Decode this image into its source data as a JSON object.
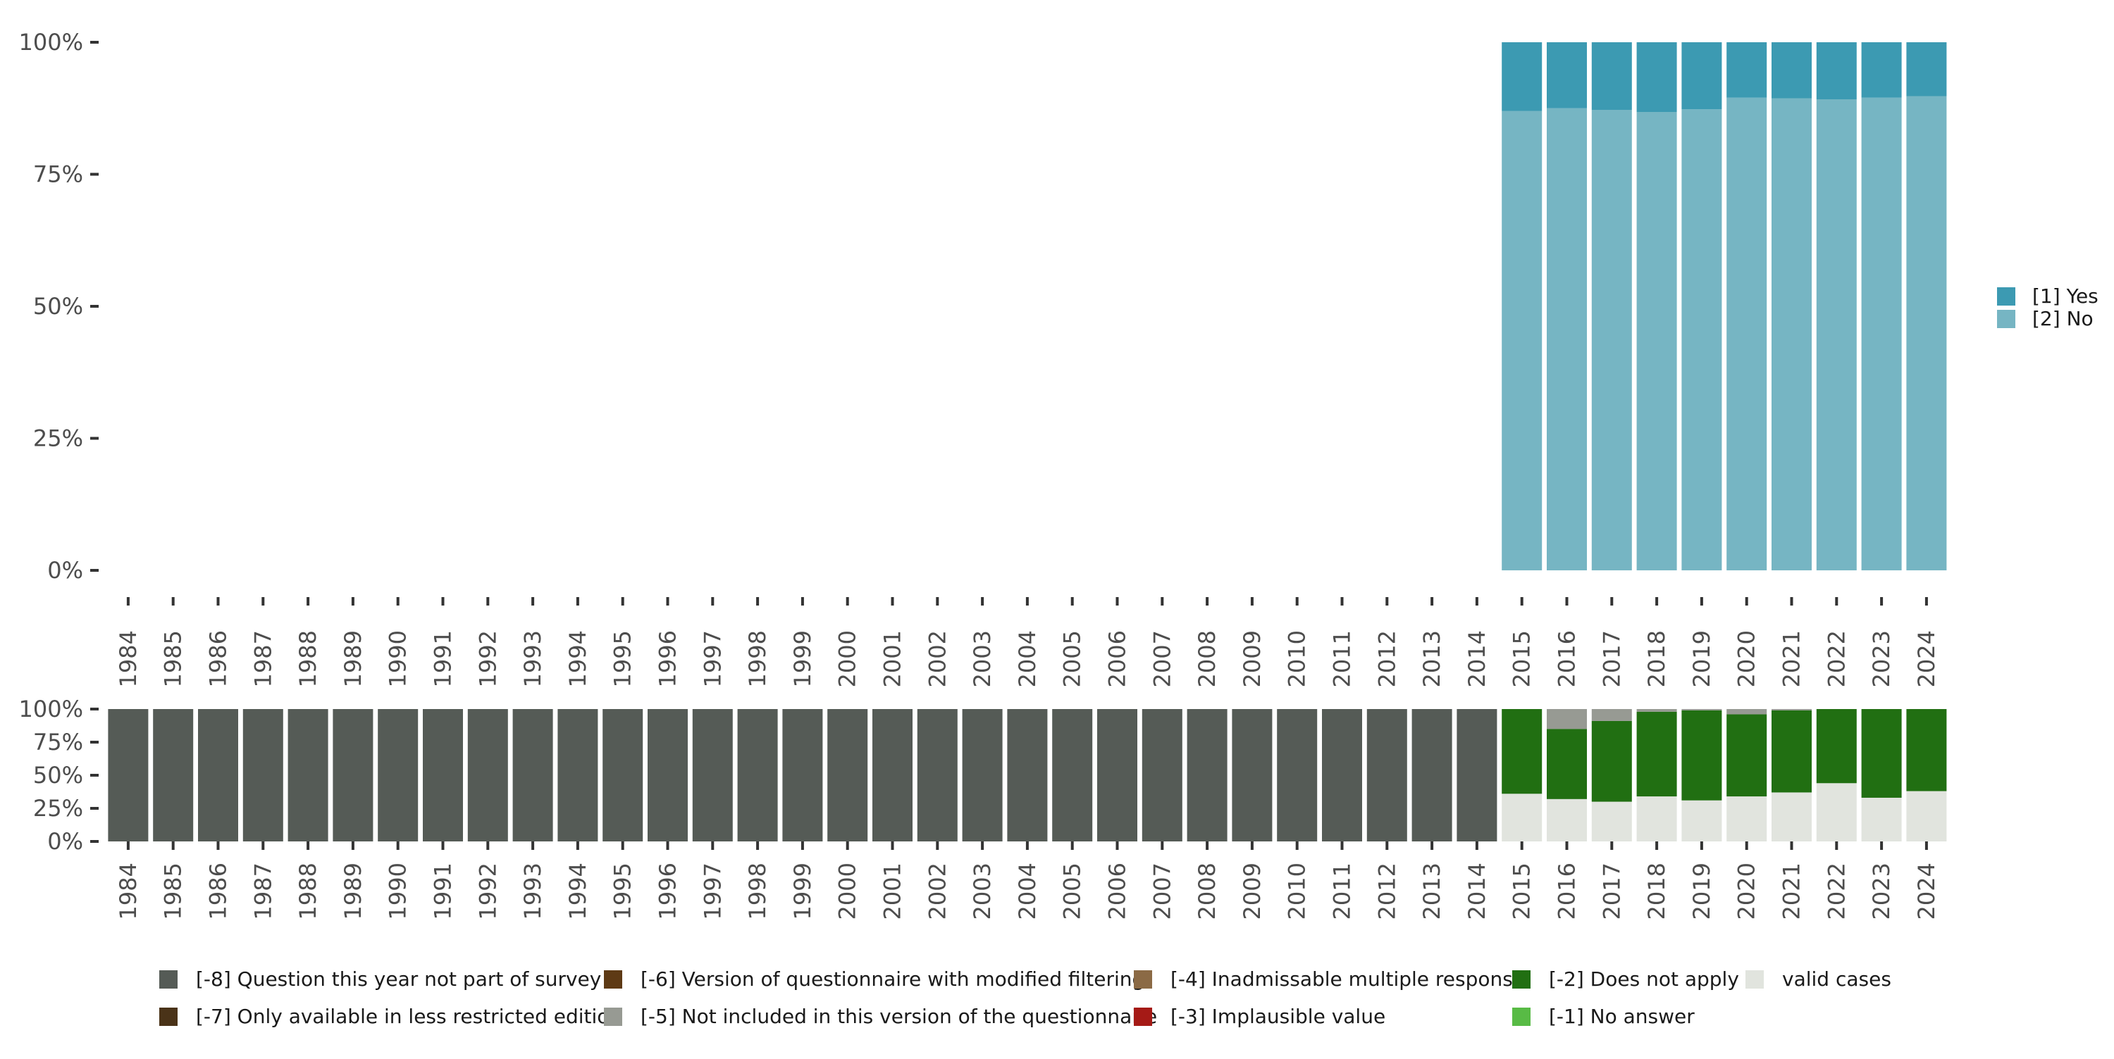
{
  "chart_data": [
    {
      "type": "bar",
      "stacked": true,
      "percent": true,
      "categories": [
        "1984",
        "1985",
        "1986",
        "1987",
        "1988",
        "1989",
        "1990",
        "1991",
        "1992",
        "1993",
        "1994",
        "1995",
        "1996",
        "1997",
        "1998",
        "1999",
        "2000",
        "2001",
        "2002",
        "2003",
        "2004",
        "2005",
        "2006",
        "2007",
        "2008",
        "2009",
        "2010",
        "2011",
        "2012",
        "2013",
        "2014",
        "2015",
        "2016",
        "2017",
        "2018",
        "2019",
        "2020",
        "2021",
        "2022",
        "2023",
        "2024"
      ],
      "ylim": [
        0,
        100
      ],
      "yticks": [
        "0%",
        "25%",
        "50%",
        "75%",
        "100%"
      ],
      "legend_position": "right",
      "series": [
        {
          "name": "[2] No",
          "color": "#76B5C3",
          "values": [
            null,
            null,
            null,
            null,
            null,
            null,
            null,
            null,
            null,
            null,
            null,
            null,
            null,
            null,
            null,
            null,
            null,
            null,
            null,
            null,
            null,
            null,
            null,
            null,
            null,
            null,
            null,
            null,
            null,
            null,
            null,
            87.0,
            87.5,
            87.2,
            86.8,
            87.3,
            89.5,
            89.4,
            89.2,
            89.5,
            89.8
          ]
        },
        {
          "name": "[1] Yes",
          "color": "#3C9AB2",
          "values": [
            null,
            null,
            null,
            null,
            null,
            null,
            null,
            null,
            null,
            null,
            null,
            null,
            null,
            null,
            null,
            null,
            null,
            null,
            null,
            null,
            null,
            null,
            null,
            null,
            null,
            null,
            null,
            null,
            null,
            null,
            null,
            13.0,
            12.5,
            12.8,
            13.2,
            12.7,
            10.5,
            10.6,
            10.8,
            10.5,
            10.2
          ]
        }
      ],
      "legend": [
        {
          "label": "[1] Yes",
          "color": "#3C9AB2"
        },
        {
          "label": "[2] No",
          "color": "#76B5C3"
        }
      ]
    },
    {
      "type": "bar",
      "stacked": true,
      "percent": true,
      "categories": [
        "1984",
        "1985",
        "1986",
        "1987",
        "1988",
        "1989",
        "1990",
        "1991",
        "1992",
        "1993",
        "1994",
        "1995",
        "1996",
        "1997",
        "1998",
        "1999",
        "2000",
        "2001",
        "2002",
        "2003",
        "2004",
        "2005",
        "2006",
        "2007",
        "2008",
        "2009",
        "2010",
        "2011",
        "2012",
        "2013",
        "2014",
        "2015",
        "2016",
        "2017",
        "2018",
        "2019",
        "2020",
        "2021",
        "2022",
        "2023",
        "2024"
      ],
      "ylim": [
        0,
        100
      ],
      "yticks": [
        "0%",
        "25%",
        "50%",
        "75%",
        "100%"
      ],
      "legend_position": "bottom",
      "series": [
        {
          "name": "valid cases",
          "color": "#E1E4DE",
          "values": [
            0,
            0,
            0,
            0,
            0,
            0,
            0,
            0,
            0,
            0,
            0,
            0,
            0,
            0,
            0,
            0,
            0,
            0,
            0,
            0,
            0,
            0,
            0,
            0,
            0,
            0,
            0,
            0,
            0,
            0,
            0,
            36,
            32,
            30,
            34,
            31,
            34,
            37,
            44,
            33,
            38
          ]
        },
        {
          "name": "[-2] Does not apply",
          "color": "#216F12",
          "values": [
            0,
            0,
            0,
            0,
            0,
            0,
            0,
            0,
            0,
            0,
            0,
            0,
            0,
            0,
            0,
            0,
            0,
            0,
            0,
            0,
            0,
            0,
            0,
            0,
            0,
            0,
            0,
            0,
            0,
            0,
            0,
            64,
            53,
            61,
            64,
            68,
            62,
            62,
            56,
            67,
            62
          ]
        },
        {
          "name": "[-5] Not included in this version of the questionnaire",
          "color": "#979A93",
          "values": [
            0,
            0,
            0,
            0,
            0,
            0,
            0,
            0,
            0,
            0,
            0,
            0,
            0,
            0,
            0,
            0,
            0,
            0,
            0,
            0,
            0,
            0,
            0,
            0,
            0,
            0,
            0,
            0,
            0,
            0,
            0,
            0,
            15,
            9,
            2,
            1,
            4,
            1,
            0,
            0,
            0
          ]
        },
        {
          "name": "[-8] Question this year not part of survey",
          "color": "#555B56",
          "values": [
            100,
            100,
            100,
            100,
            100,
            100,
            100,
            100,
            100,
            100,
            100,
            100,
            100,
            100,
            100,
            100,
            100,
            100,
            100,
            100,
            100,
            100,
            100,
            100,
            100,
            100,
            100,
            100,
            100,
            100,
            100,
            0,
            0,
            0,
            0,
            0,
            0,
            0,
            0,
            0,
            0
          ]
        }
      ],
      "legend": [
        {
          "label": "[-8] Question this year not part of survey",
          "color": "#555B56"
        },
        {
          "label": "[-7] Only available in less restricted edition",
          "color": "#4A3318"
        },
        {
          "label": "[-6] Version of questionnaire with modified filtering",
          "color": "#5E3A15"
        },
        {
          "label": "[-5] Not included in this version of the questionnaire",
          "color": "#979A93"
        },
        {
          "label": "[-4] Inadmissable multiple response",
          "color": "#8B6A45"
        },
        {
          "label": "[-3] Implausible value",
          "color": "#A51A16"
        },
        {
          "label": "[-2] Does not apply",
          "color": "#216F12"
        },
        {
          "label": "[-1] No answer",
          "color": "#58BB45"
        },
        {
          "label": "valid cases",
          "color": "#E1E4DE"
        }
      ]
    }
  ]
}
